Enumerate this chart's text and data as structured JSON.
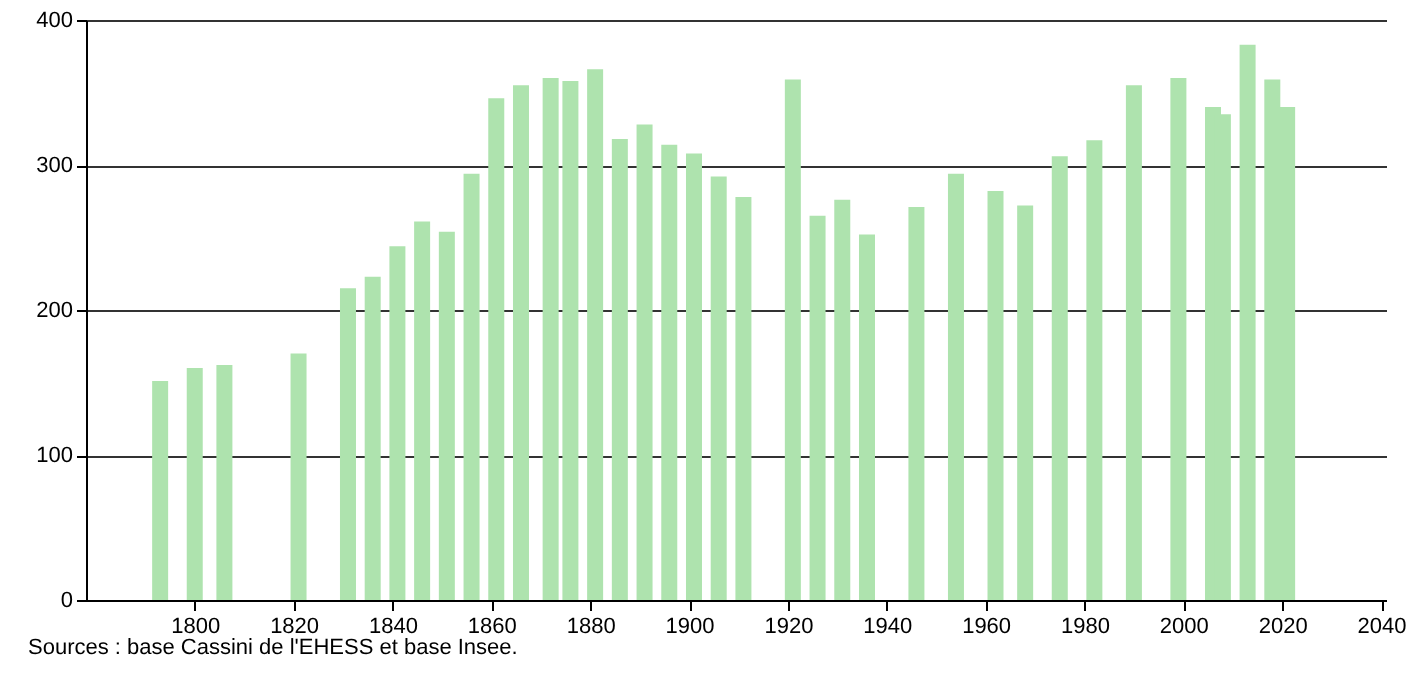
{
  "chart_data": {
    "type": "bar",
    "x": [
      1793,
      1800,
      1806,
      1821,
      1831,
      1836,
      1841,
      1846,
      1851,
      1856,
      1861,
      1866,
      1872,
      1876,
      1881,
      1886,
      1891,
      1896,
      1901,
      1906,
      1911,
      1921,
      1926,
      1931,
      1936,
      1946,
      1954,
      1962,
      1968,
      1975,
      1982,
      1990,
      1999,
      2006,
      2008,
      2013,
      2018,
      2021
    ],
    "values": [
      151,
      160,
      162,
      170,
      215,
      223,
      244,
      261,
      254,
      294,
      346,
      355,
      360,
      358,
      366,
      318,
      328,
      314,
      308,
      292,
      278,
      359,
      265,
      276,
      252,
      271,
      294,
      282,
      272,
      306,
      317,
      355,
      360,
      340,
      335,
      383,
      359,
      340
    ],
    "color": "#aee3ae",
    "xlim": [
      1778,
      2041
    ],
    "xticks": [
      1800,
      1820,
      1840,
      1860,
      1880,
      1900,
      1920,
      1940,
      1960,
      1980,
      2000,
      2020,
      2040
    ],
    "ylim": [
      0,
      400
    ],
    "yticks": [
      0,
      100,
      200,
      300,
      400
    ],
    "grid": "y",
    "annotations": [
      "Sources : base Cassini de l'EHESS et base Insee."
    ]
  }
}
